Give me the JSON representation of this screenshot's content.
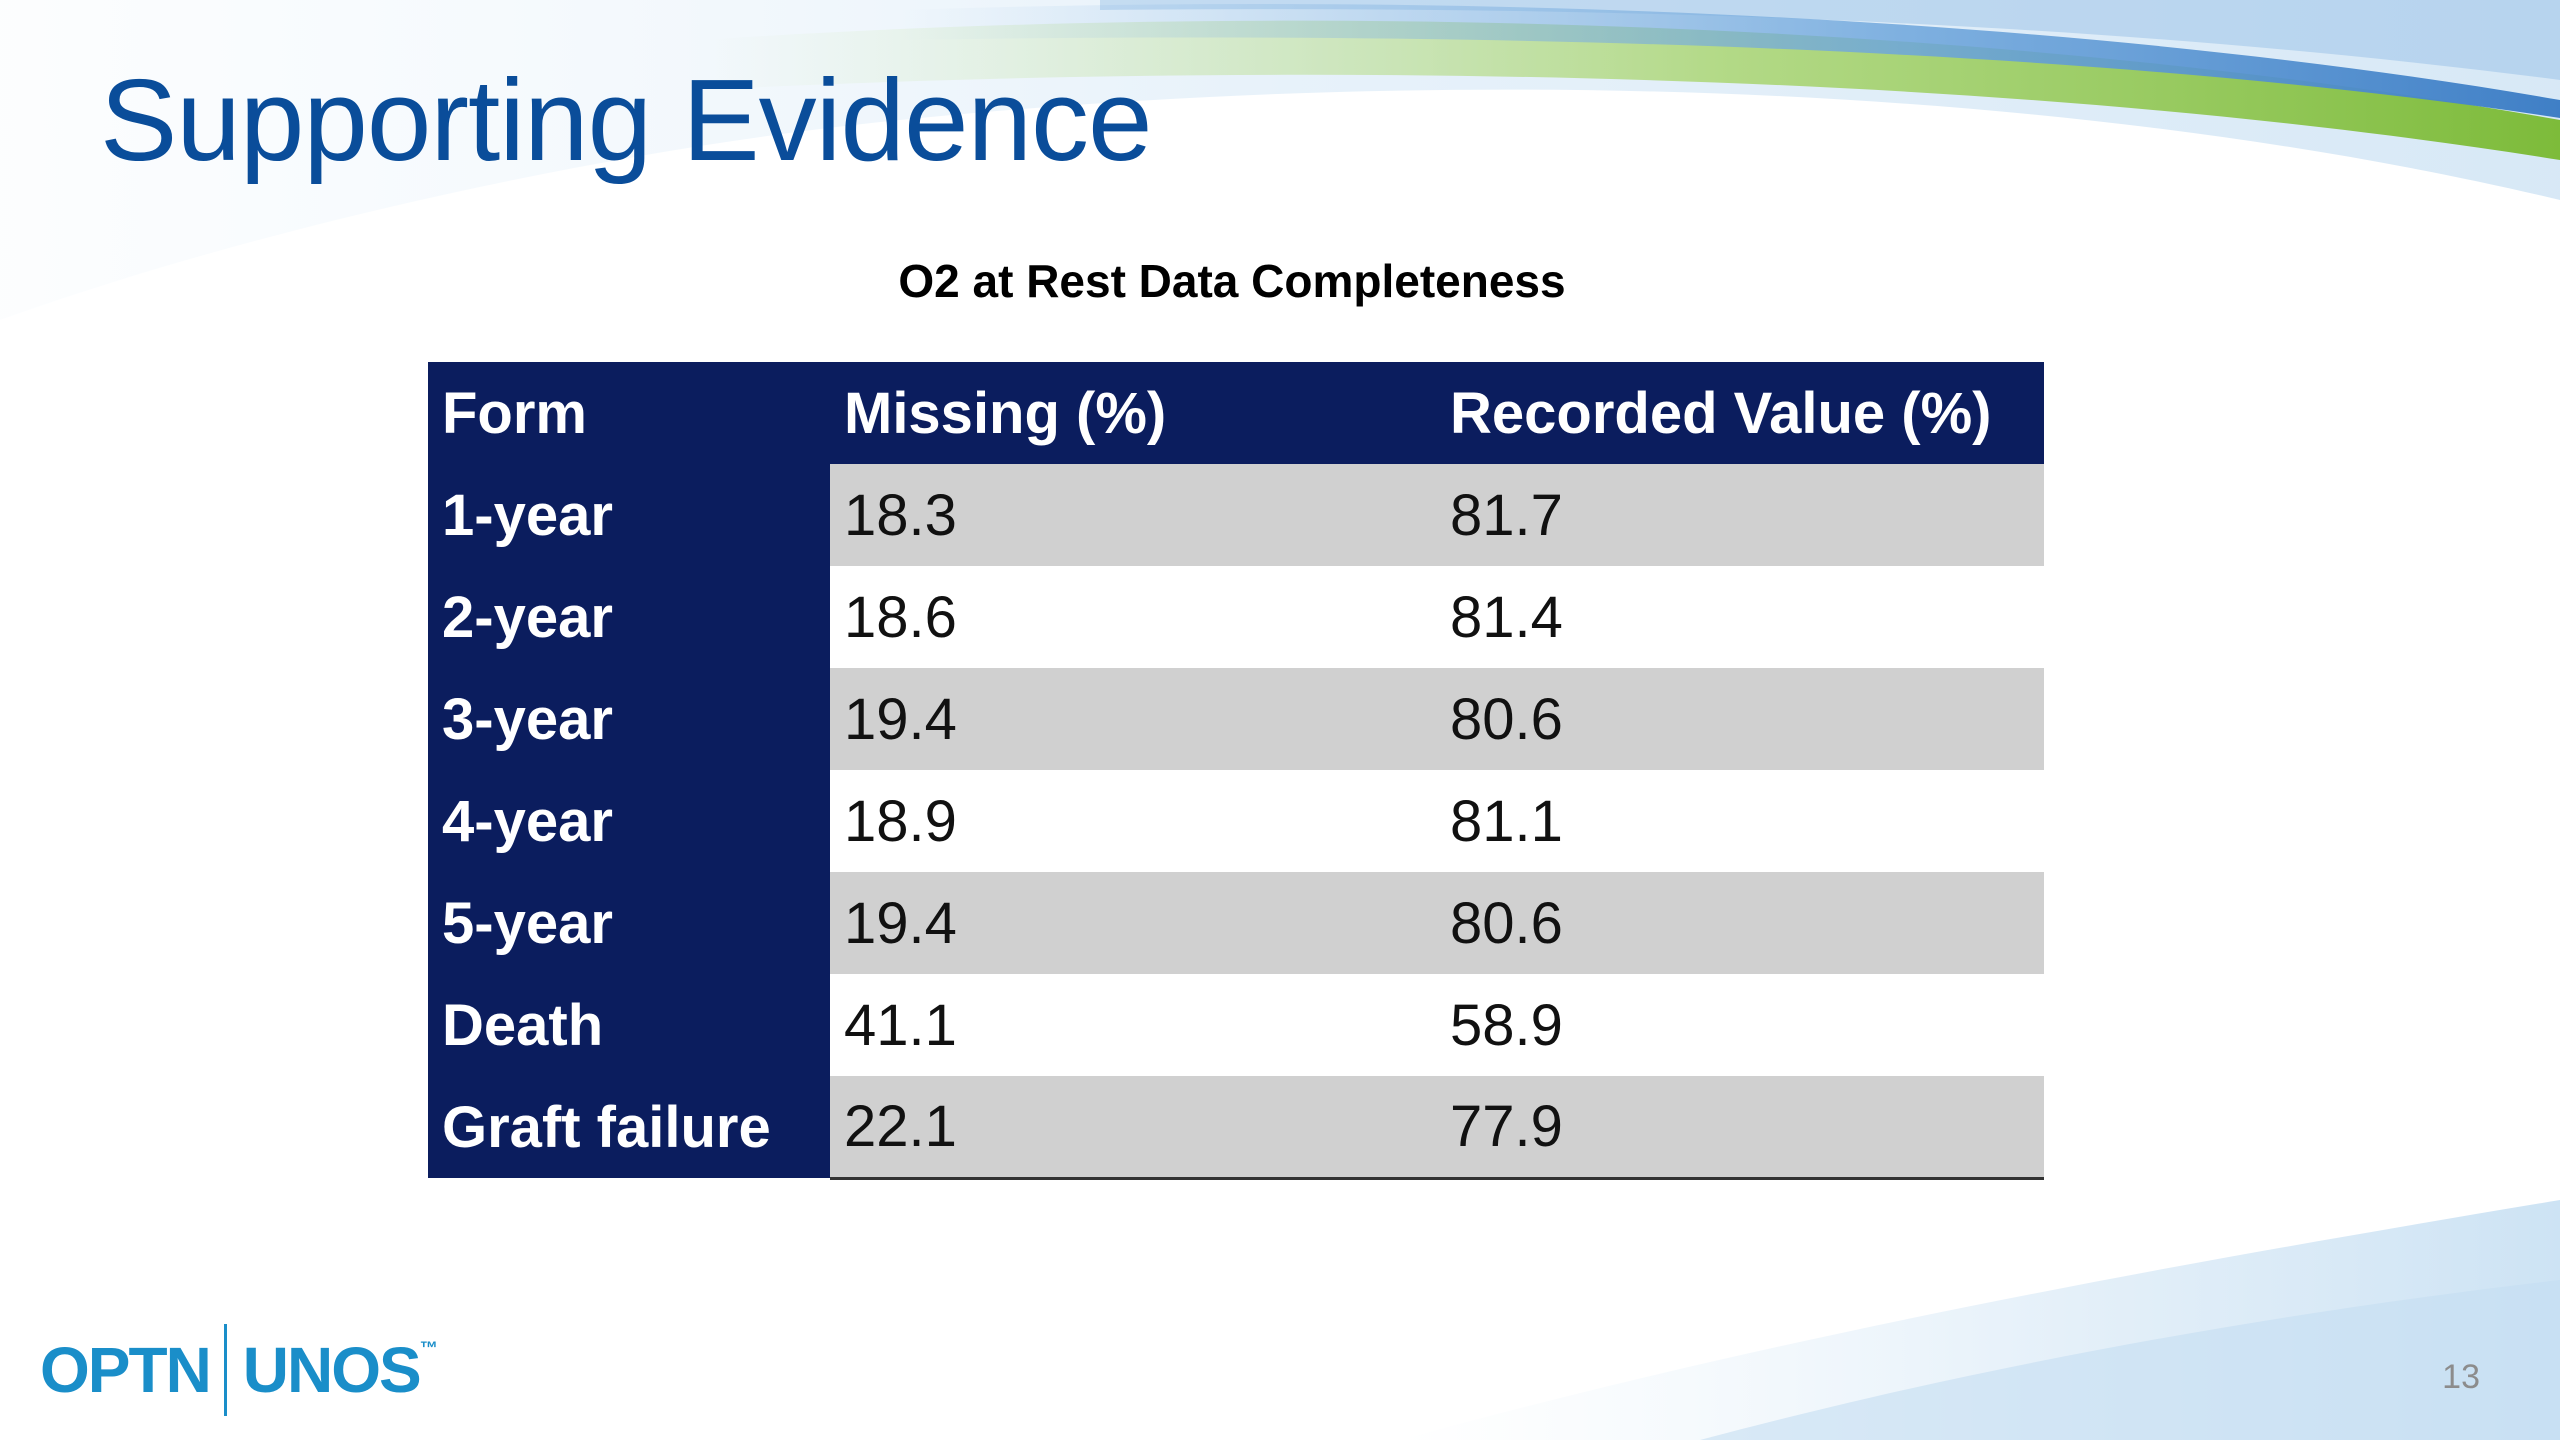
{
  "slide": {
    "title": "Supporting Evidence",
    "subtitle": "O2 at Rest Data Completeness",
    "page_number": "13"
  },
  "table": {
    "headers": [
      "Form",
      "Missing (%)",
      "Recorded Value (%)"
    ],
    "rows": [
      [
        "1-year",
        "18.3",
        "81.7"
      ],
      [
        "2-year",
        "18.6",
        "81.4"
      ],
      [
        "3-year",
        "19.4",
        "80.6"
      ],
      [
        "4-year",
        "18.9",
        "81.1"
      ],
      [
        "5-year",
        "19.4",
        "80.6"
      ],
      [
        "Death",
        "41.1",
        "58.9"
      ],
      [
        "Graft failure",
        "22.1",
        "77.9"
      ]
    ]
  },
  "logo": {
    "left": "OPTN",
    "right": "UNOS",
    "trademark": "™"
  },
  "colors": {
    "title_blue": "#0a4d9a",
    "table_header_navy": "#0b1d5e",
    "stripe_gray": "#d0d0d0",
    "logo_blue": "#1a8ec9",
    "swoosh_green": "#8cc63f",
    "swoosh_blue": "#4a8fd0"
  }
}
